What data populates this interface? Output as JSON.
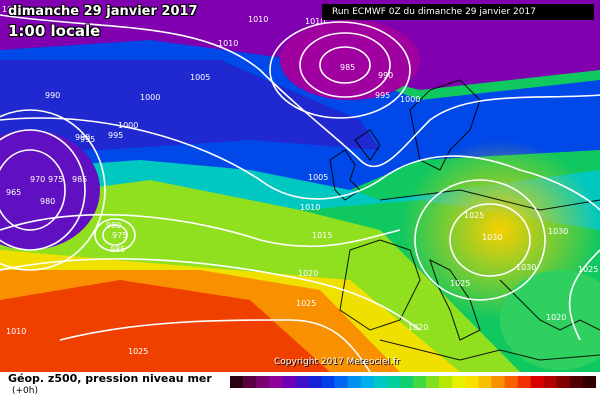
{
  "header": {
    "date": "dimanche 29 janvier 2017",
    "time": "1:00 locale",
    "run": "Run ECMWF 0Z du dimanche 29 janvier 2017"
  },
  "footer": {
    "title": "Géop. z500, pression niveau mer",
    "lead": "(+0h)",
    "copyright": "Copyright 2017 Meteociel.fr"
  },
  "isobar_labels": [
    "1005",
    "1010",
    "1010",
    "1010",
    "1005",
    "1000",
    "990",
    "995",
    "990",
    "995",
    "1000",
    "985",
    "990",
    "995",
    "1000",
    "965",
    "970",
    "975",
    "985",
    "980",
    "980",
    "975",
    "985",
    "1005",
    "1010",
    "1015",
    "1020",
    "1025",
    "1025",
    "1025",
    "1030",
    "1030",
    "1030",
    "1025",
    "1020",
    "1020",
    "1010",
    "1025"
  ],
  "legend": {
    "colors": [
      "#2a0012",
      "#5a0040",
      "#7a0070",
      "#90009a",
      "#7000b8",
      "#4010c8",
      "#1820d8",
      "#0040e8",
      "#0068f0",
      "#0090f0",
      "#00b0e8",
      "#00c8c8",
      "#00d0a0",
      "#10d070",
      "#40d840",
      "#80e020",
      "#b8e800",
      "#e8f000",
      "#f8e000",
      "#f8c000",
      "#f89000",
      "#f86000",
      "#f03000",
      "#d80000",
      "#b00000",
      "#800000",
      "#500000",
      "#300000"
    ]
  }
}
